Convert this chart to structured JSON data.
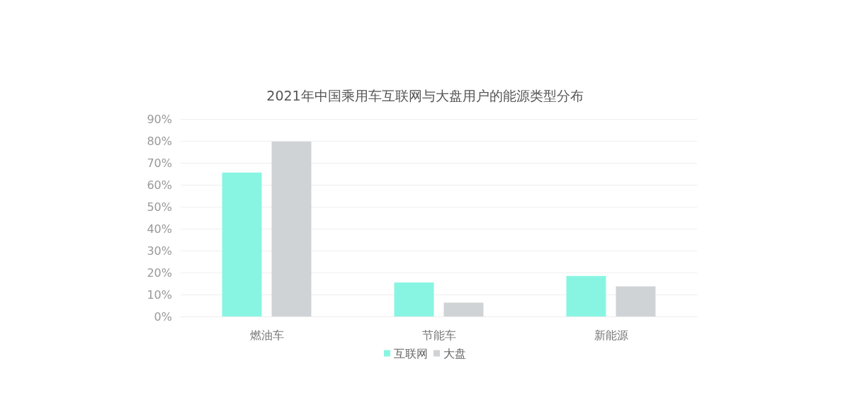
{
  "chart_data": {
    "type": "bar",
    "title": "2021年中国乘用车互联网与大盘用户的能源类型分布",
    "categories": [
      "燃油车",
      "节能车",
      "新能源"
    ],
    "series": [
      {
        "name": "互联网",
        "color": "#88f5e2",
        "values": [
          65.6,
          15.5,
          18.5
        ]
      },
      {
        "name": "大盘",
        "color": "#d0d3d6",
        "values": [
          79.7,
          6.3,
          13.7
        ]
      }
    ],
    "ylim": [
      0,
      90
    ],
    "yticks": [
      {
        "value": 0,
        "label": "0%"
      },
      {
        "value": 10,
        "label": "10%"
      },
      {
        "value": 20,
        "label": "20%"
      },
      {
        "value": 30,
        "label": "30%"
      },
      {
        "value": 40,
        "label": "40%"
      },
      {
        "value": 50,
        "label": "50%"
      },
      {
        "value": 60,
        "label": "60%"
      },
      {
        "value": 70,
        "label": "70%"
      },
      {
        "value": 80,
        "label": "80%"
      },
      {
        "value": 90,
        "label": "90%"
      }
    ],
    "grid": "y",
    "legend": "bottom"
  }
}
